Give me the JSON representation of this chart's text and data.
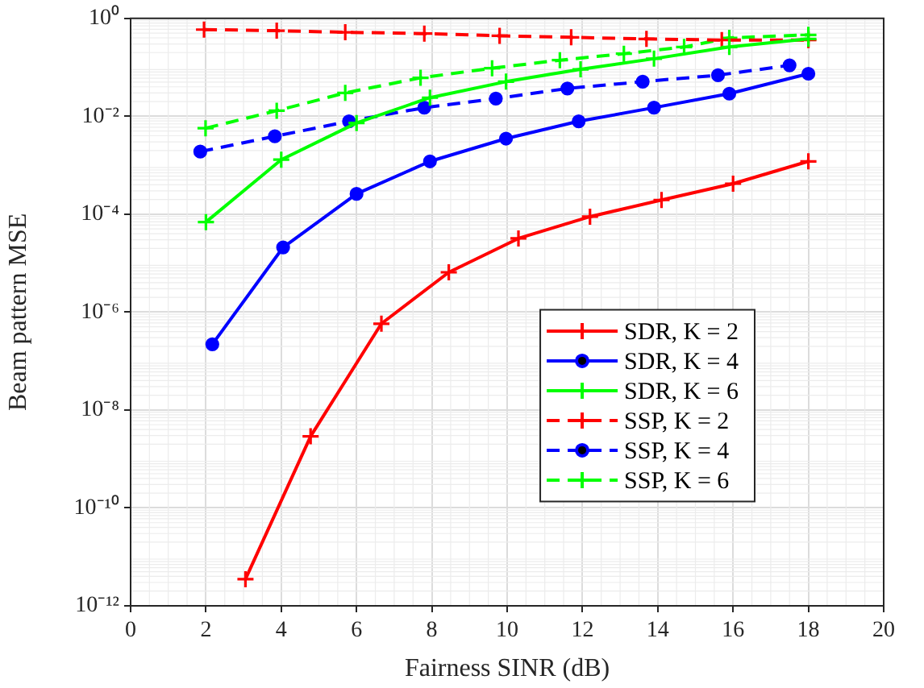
{
  "chart_data": {
    "type": "line",
    "xlabel": "Fairness SINR (dB)",
    "ylabel": "Beam pattern MSE",
    "log": "y",
    "grid": true,
    "legend": "right",
    "xlim": [
      0,
      20
    ],
    "xticks": [
      0,
      2,
      4,
      6,
      8,
      10,
      12,
      14,
      16,
      18,
      20
    ],
    "ylim": [
      1e-12,
      1
    ],
    "yticks": [
      {
        "value": 1e-12,
        "label": "10⁻¹²"
      },
      {
        "value": 1e-10,
        "label": "10⁻¹⁰"
      },
      {
        "value": 1e-08,
        "label": "10⁻⁸"
      },
      {
        "value": 1e-06,
        "label": "10⁻⁶"
      },
      {
        "value": 0.0001,
        "label": "10⁻⁴"
      },
      {
        "value": 0.01,
        "label": "10⁻²"
      },
      {
        "value": 1,
        "label": "10⁰"
      }
    ],
    "series": [
      {
        "name": "SDR, K = 2",
        "color": "#ff0000",
        "line_style": "solid",
        "marker": "cross",
        "x": [
          3.05,
          4.78,
          6.66,
          8.45,
          10.3,
          12.2,
          14.1,
          16,
          18
        ],
        "values": [
          3.5e-12,
          2.9e-09,
          5.8e-07,
          6.5e-06,
          3.2e-05,
          8.9e-05,
          0.000195,
          0.00042,
          0.0012
        ]
      },
      {
        "name": "SDR, K = 4",
        "color": "#0000ff",
        "line_style": "solid",
        "marker": "circle",
        "x": [
          2.17,
          4.05,
          6,
          7.95,
          9.97,
          11.9,
          13.9,
          15.9,
          18
        ],
        "values": [
          2.2e-07,
          2.1e-05,
          0.00026,
          0.0012,
          0.0035,
          0.0079,
          0.015,
          0.029,
          0.074
        ]
      },
      {
        "name": "SDR, K = 6",
        "color": "#00ff00",
        "line_style": "solid",
        "marker": "cross",
        "x": [
          2,
          4,
          6,
          7.95,
          9.97,
          11.95,
          13.9,
          15.9,
          18
        ],
        "values": [
          6.9e-05,
          0.0013,
          0.0073,
          0.024,
          0.051,
          0.091,
          0.15,
          0.26,
          0.38
        ]
      },
      {
        "name": "SSP, K = 2",
        "color": "#ff0000",
        "line_style": "dashed",
        "marker": "cross",
        "x": [
          1.95,
          3.88,
          5.7,
          7.8,
          9.8,
          11.7,
          13.7,
          15.7,
          18
        ],
        "values": [
          0.59,
          0.56,
          0.52,
          0.49,
          0.44,
          0.41,
          0.38,
          0.36,
          0.36
        ]
      },
      {
        "name": "SSP, K = 4",
        "color": "#0000ff",
        "line_style": "dashed",
        "marker": "circle",
        "x": [
          1.85,
          3.83,
          5.8,
          7.8,
          9.7,
          11.6,
          13.6,
          15.6,
          17.5
        ],
        "values": [
          0.0019,
          0.0039,
          0.0079,
          0.015,
          0.023,
          0.037,
          0.051,
          0.069,
          0.11
        ]
      },
      {
        "name": "SSP, K = 6",
        "color": "#00ff00",
        "line_style": "dashed",
        "marker": "cross",
        "x": [
          1.99,
          3.88,
          5.7,
          7.7,
          9.6,
          11.4,
          13.1,
          14.7,
          15.9,
          18
        ],
        "values": [
          0.0057,
          0.013,
          0.03,
          0.061,
          0.096,
          0.14,
          0.19,
          0.26,
          0.4,
          0.46
        ]
      }
    ]
  }
}
